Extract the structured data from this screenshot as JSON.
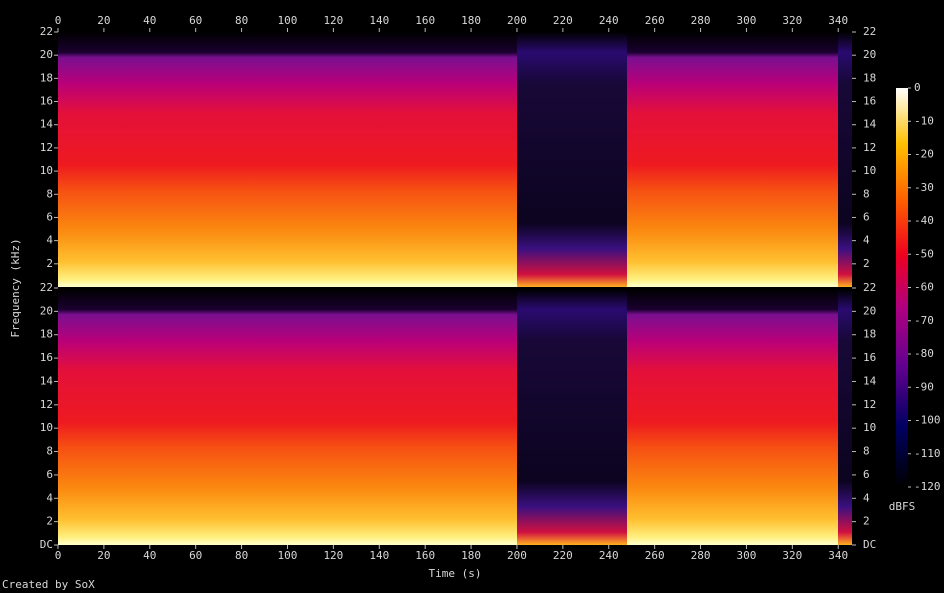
{
  "chart_data": {
    "type": "spectrogram",
    "xlabel": "Time (s)",
    "ylabel": "Frequency (kHz)",
    "footer": "Created by SoX",
    "xlim": [
      0,
      346
    ],
    "xticks": [
      0,
      20,
      40,
      60,
      80,
      100,
      120,
      140,
      160,
      180,
      200,
      220,
      240,
      260,
      280,
      300,
      320,
      340
    ],
    "panels": [
      {
        "ylim": [
          0,
          22
        ],
        "yticks": [
          2,
          4,
          6,
          8,
          10,
          12,
          14,
          16,
          18,
          20,
          22
        ]
      },
      {
        "ylim": [
          0,
          22
        ],
        "yticks": [
          {
            "value": 0,
            "label": "DC"
          },
          2,
          4,
          6,
          8,
          10,
          12,
          14,
          16,
          18,
          20,
          22
        ]
      }
    ],
    "colorbar": {
      "label": "dBFS",
      "clim": [
        -120,
        0
      ],
      "ticks": [
        0,
        -10,
        -20,
        -30,
        -40,
        -50,
        -60,
        -70,
        -80,
        -90,
        -100,
        -110,
        -120
      ]
    }
  }
}
